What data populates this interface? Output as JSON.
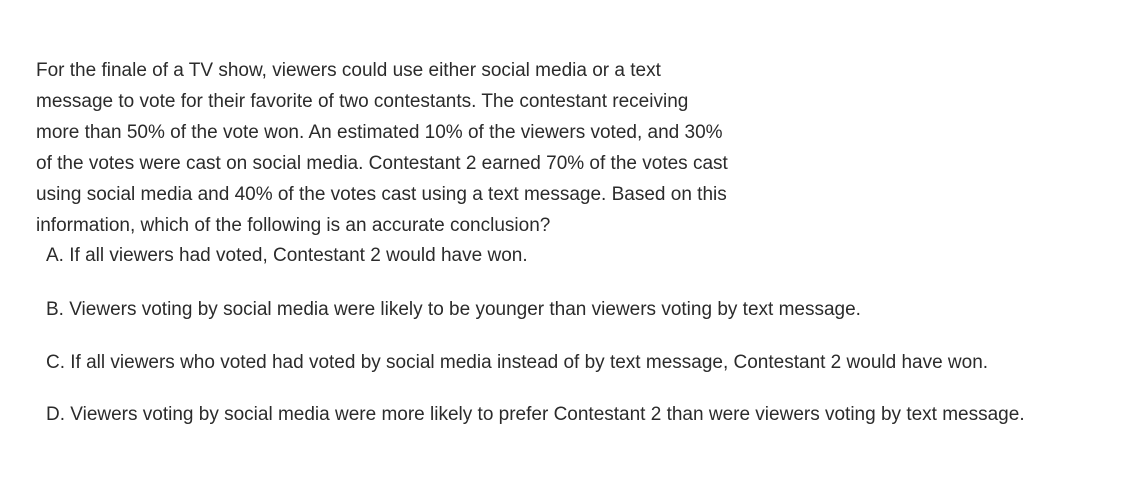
{
  "question": {
    "stem_lines": [
      "For the finale of a TV show, viewers could use either social media or a text",
      "message to vote for their favorite of two contestants. The contestant receiving",
      "more than 50% of the vote won. An estimated 10% of the viewers voted, and 30%",
      "of the votes were cast on social media. Contestant 2 earned 70% of the votes cast",
      "using social media and 40% of the votes cast using a text message. Based on this",
      "information, which of the following is an accurate conclusion?"
    ],
    "choices": [
      "A. If all viewers had voted, Contestant 2 would have won.",
      "B. Viewers voting by social media were likely to be younger than viewers voting by text message.",
      "C. If all viewers who voted had voted by social media instead of by text message, Contestant 2 would have won.",
      "D. Viewers voting by social media were more likely to prefer Contestant 2 than were viewers voting by text message."
    ]
  }
}
